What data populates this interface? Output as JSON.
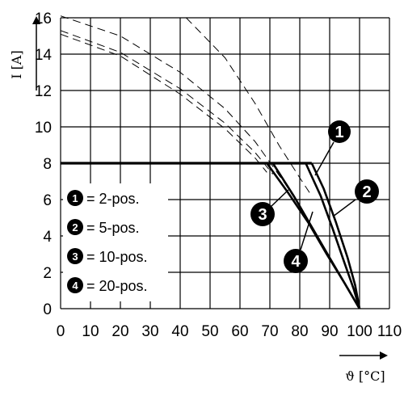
{
  "chart_data": {
    "type": "line",
    "ylabel": "I [A]",
    "xlabel": "ϑ [°C]",
    "xlim": [
      0,
      110
    ],
    "ylim": [
      0,
      16
    ],
    "x_ticks": [
      0,
      10,
      20,
      30,
      40,
      50,
      60,
      70,
      80,
      90,
      100,
      110
    ],
    "y_ticks": [
      0,
      2,
      4,
      6,
      8,
      10,
      12,
      14,
      16
    ],
    "grid": true,
    "legend_position": "left",
    "legend": [
      {
        "marker": "1",
        "text": "= 2-pos."
      },
      {
        "marker": "2",
        "text": "= 5-pos."
      },
      {
        "marker": "3",
        "text": "= 10-pos."
      },
      {
        "marker": "4",
        "text": "= 20-pos."
      }
    ],
    "limit_line": {
      "y": 8,
      "x_range": [
        0,
        84
      ]
    },
    "series": [
      {
        "id": "1",
        "dashed_points": [
          [
            42,
            16
          ],
          [
            55,
            13.8
          ],
          [
            65,
            11.3
          ],
          [
            73,
            9.0
          ],
          [
            80,
            7.2
          ],
          [
            84,
            6.2
          ]
        ],
        "solid_points": [
          [
            84,
            8
          ],
          [
            88,
            6.6
          ],
          [
            92,
            4.8
          ],
          [
            96,
            2.8
          ],
          [
            98.5,
            1.3
          ],
          [
            100,
            0
          ]
        ]
      },
      {
        "id": "2",
        "dashed_points": [
          [
            0,
            16.1
          ],
          [
            20,
            15.0
          ],
          [
            40,
            13.0
          ],
          [
            55,
            11.0
          ],
          [
            65,
            9.2
          ],
          [
            75,
            6.9
          ],
          [
            82,
            5.1
          ]
        ],
        "solid_points": [
          [
            82,
            8
          ],
          [
            87,
            6.2
          ],
          [
            91,
            4.4
          ],
          [
            95,
            2.5
          ],
          [
            98,
            1.1
          ],
          [
            100,
            0
          ]
        ]
      },
      {
        "id": "3",
        "dashed_points": [
          [
            0,
            15.3
          ],
          [
            20,
            14.1
          ],
          [
            40,
            12.1
          ],
          [
            55,
            10.2
          ],
          [
            65,
            8.6
          ],
          [
            71,
            7.4
          ]
        ],
        "solid_points": [
          [
            71,
            8
          ],
          [
            78,
            6.2
          ],
          [
            84,
            4.5
          ],
          [
            90,
            2.8
          ],
          [
            95,
            1.4
          ],
          [
            100,
            0
          ]
        ]
      },
      {
        "id": "4",
        "dashed_points": [
          [
            0,
            15.1
          ],
          [
            20,
            13.9
          ],
          [
            40,
            11.8
          ],
          [
            55,
            9.9
          ],
          [
            65,
            8.3
          ],
          [
            69,
            7.5
          ]
        ],
        "solid_points": [
          [
            69,
            8
          ],
          [
            76,
            6.4
          ],
          [
            83,
            4.7
          ],
          [
            89,
            3.0
          ],
          [
            95,
            1.4
          ],
          [
            100,
            0
          ]
        ]
      }
    ],
    "callouts": [
      "1",
      "2",
      "3",
      "4"
    ]
  }
}
